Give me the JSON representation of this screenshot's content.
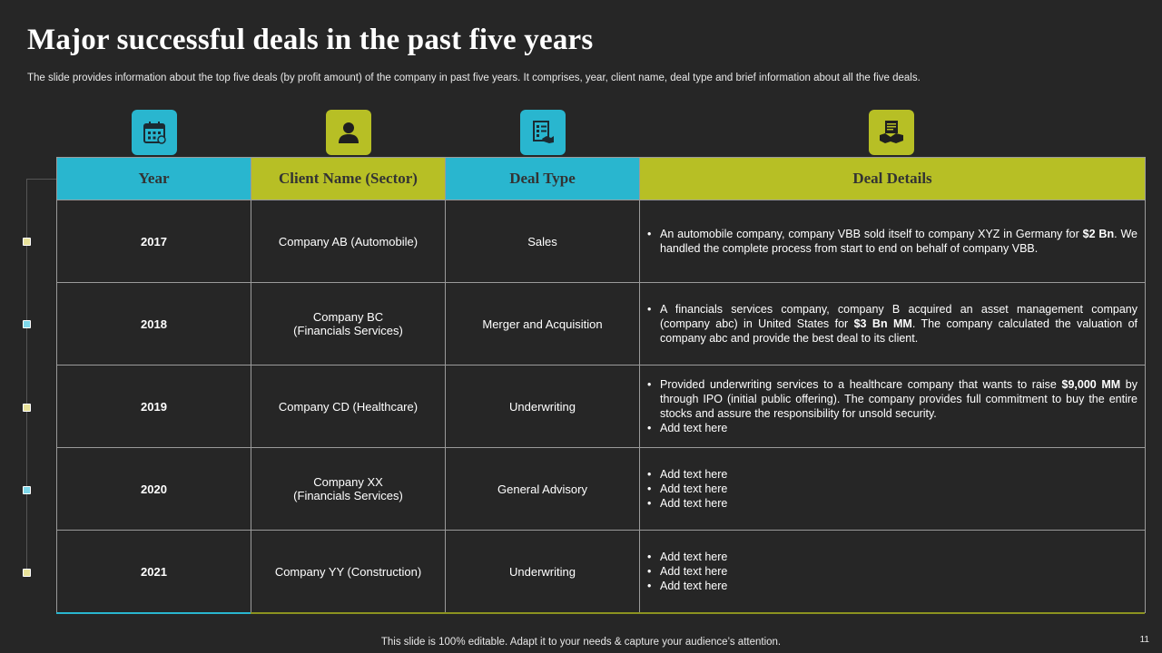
{
  "title": "Major successful deals in the past five years",
  "subtitle": "The slide provides information about the top five deals (by profit amount) of the company in past five years. It comprises, year, client name, deal type and brief information about all the five deals.",
  "icons": [
    "calendar-icon",
    "person-icon",
    "checklist-icon",
    "handshake-document-icon"
  ],
  "colors": {
    "accent_cyan": "#29b6cf",
    "accent_lime": "#b7bf25",
    "background": "#262626"
  },
  "table": {
    "headers": [
      "Year",
      "Client Name (Sector)",
      "Deal Type",
      "Deal Details"
    ],
    "rows": [
      {
        "year": "2017",
        "client_line1": "Company AB (Automobile)",
        "client_line2": "",
        "deal_type": "Sales",
        "details": [
          {
            "pre": "An automobile company, company VBB sold itself to company XYZ in Germany for ",
            "bold": "$2 Bn",
            "post": ". We handled the complete process from start to end on behalf of company VBB."
          }
        ]
      },
      {
        "year": "2018",
        "client_line1": "Company BC",
        "client_line2": "(Financials Services)",
        "deal_type": "Merger and Acquisition",
        "details": [
          {
            "pre": "A financials services company, company B acquired an asset management company (company abc) in United States for ",
            "bold": "$3 Bn MM",
            "post": ". The company calculated the valuation of company abc and provide the best deal to its client."
          }
        ]
      },
      {
        "year": "2019",
        "client_line1": "Company CD (Healthcare)",
        "client_line2": "",
        "deal_type": "Underwriting",
        "details": [
          {
            "pre": "Provided underwriting services to a healthcare company that wants to raise ",
            "bold": "$9,000 MM",
            "post": " by through IPO (initial public offering). The company provides full commitment to buy the entire stocks and assure the responsibility for unsold security."
          },
          {
            "pre": "Add text here",
            "bold": "",
            "post": ""
          }
        ]
      },
      {
        "year": "2020",
        "client_line1": "Company XX",
        "client_line2": "(Financials Services)",
        "deal_type": "General Advisory",
        "details": [
          {
            "pre": "Add text here",
            "bold": "",
            "post": ""
          },
          {
            "pre": "Add text here",
            "bold": "",
            "post": ""
          },
          {
            "pre": "Add text here",
            "bold": "",
            "post": ""
          }
        ]
      },
      {
        "year": "2021",
        "client_line1": "Company YY (Construction)",
        "client_line2": "",
        "deal_type": "Underwriting",
        "details": [
          {
            "pre": "Add text here",
            "bold": "",
            "post": ""
          },
          {
            "pre": "Add text here",
            "bold": "",
            "post": ""
          },
          {
            "pre": "Add text here",
            "bold": "",
            "post": ""
          }
        ]
      }
    ]
  },
  "footer": "This slide is 100% editable. Adapt it to your needs & capture your audience’s attention.",
  "page_number": "11"
}
